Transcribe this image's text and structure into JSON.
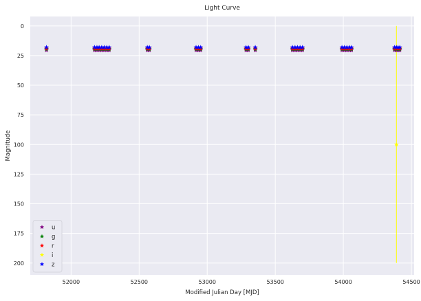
{
  "chart_data": {
    "type": "scatter",
    "title": "Light Curve",
    "xlabel": "Modified Julian Day [MJD]",
    "ylabel": "Magnitude",
    "xlim": [
      51700,
      54520
    ],
    "ylim": [
      210,
      -8
    ],
    "y_inverted": true,
    "x_ticks": [
      52000,
      52500,
      53000,
      53500,
      54000,
      54500
    ],
    "y_ticks": [
      0,
      25,
      50,
      75,
      100,
      125,
      150,
      175,
      200
    ],
    "grid": true,
    "background": "#eaeaf2",
    "grid_color": "#ffffff",
    "legend_position": "lower-left",
    "marker": "star",
    "series": [
      {
        "name": "u",
        "color": "#800080",
        "x": [
          51819,
          52172,
          52190,
          52206,
          52225,
          52243,
          52262,
          52280,
          52560,
          52575,
          52918,
          52935,
          52952,
          53285,
          53302,
          53353,
          53626,
          53645,
          53663,
          53682,
          53700,
          53990,
          54008,
          54026,
          54045,
          54060,
          54376,
          54390,
          54402,
          54415
        ],
        "y": [
          20.5,
          20.5,
          20.5,
          20.5,
          20.5,
          20.5,
          20.5,
          20.5,
          20.5,
          20.5,
          20.5,
          20.5,
          20.5,
          20.5,
          20.5,
          20.5,
          20.5,
          20.5,
          20.5,
          20.5,
          20.5,
          20.5,
          20.5,
          20.5,
          20.5,
          20.5,
          20.5,
          20.5,
          20.5,
          20.5
        ]
      },
      {
        "name": "g",
        "color": "#008000",
        "x": [
          51819,
          52172,
          52190,
          52206,
          52225,
          52243,
          52262,
          52280,
          52560,
          52575,
          52918,
          52935,
          52952,
          53285,
          53302,
          53353,
          53626,
          53645,
          53663,
          53682,
          53700,
          53990,
          54008,
          54026,
          54045,
          54060,
          54376,
          54390,
          54402,
          54415
        ],
        "y": [
          19.5,
          19.5,
          19.5,
          19.5,
          19.5,
          19.5,
          19.5,
          19.5,
          19.5,
          19.5,
          19.5,
          19.5,
          19.5,
          19.5,
          19.5,
          19.5,
          19.5,
          19.5,
          19.5,
          19.5,
          19.5,
          19.5,
          19.5,
          19.5,
          19.5,
          19.5,
          19.5,
          19.5,
          19.5,
          19.5
        ]
      },
      {
        "name": "r",
        "color": "#ff0000",
        "x": [
          51819,
          52172,
          52190,
          52206,
          52225,
          52243,
          52262,
          52280,
          52560,
          52575,
          52918,
          52935,
          52952,
          53285,
          53302,
          53353,
          53626,
          53645,
          53663,
          53682,
          53700,
          53990,
          54008,
          54026,
          54045,
          54060,
          54376,
          54390,
          54402,
          54415
        ],
        "y": [
          19.0,
          19.0,
          19.0,
          19.0,
          19.0,
          19.0,
          19.0,
          19.0,
          19.0,
          19.0,
          19.0,
          19.0,
          19.0,
          19.0,
          19.0,
          19.0,
          19.0,
          19.0,
          19.0,
          19.0,
          19.0,
          19.0,
          19.0,
          19.0,
          19.0,
          19.0,
          19.0,
          19.0,
          19.0,
          19.0
        ]
      },
      {
        "name": "i",
        "color": "#ffff00",
        "x": [
          54390
        ],
        "y": [
          100
        ],
        "error_bar": [
          0,
          200
        ]
      },
      {
        "name": "z",
        "color": "#0000ff",
        "x": [
          51819,
          52172,
          52190,
          52206,
          52225,
          52243,
          52262,
          52280,
          52560,
          52575,
          52918,
          52935,
          52952,
          53285,
          53302,
          53353,
          53626,
          53645,
          53663,
          53682,
          53700,
          53990,
          54008,
          54026,
          54045,
          54060,
          54376,
          54390,
          54402,
          54415
        ],
        "y": [
          18.0,
          18.0,
          18.0,
          18.0,
          18.0,
          18.0,
          18.0,
          18.0,
          18.0,
          18.0,
          18.0,
          18.0,
          18.0,
          18.0,
          18.0,
          18.0,
          18.0,
          18.0,
          18.0,
          18.0,
          18.0,
          18.0,
          18.0,
          18.0,
          18.0,
          18.0,
          18.0,
          18.0,
          18.0,
          18.0
        ]
      }
    ]
  }
}
